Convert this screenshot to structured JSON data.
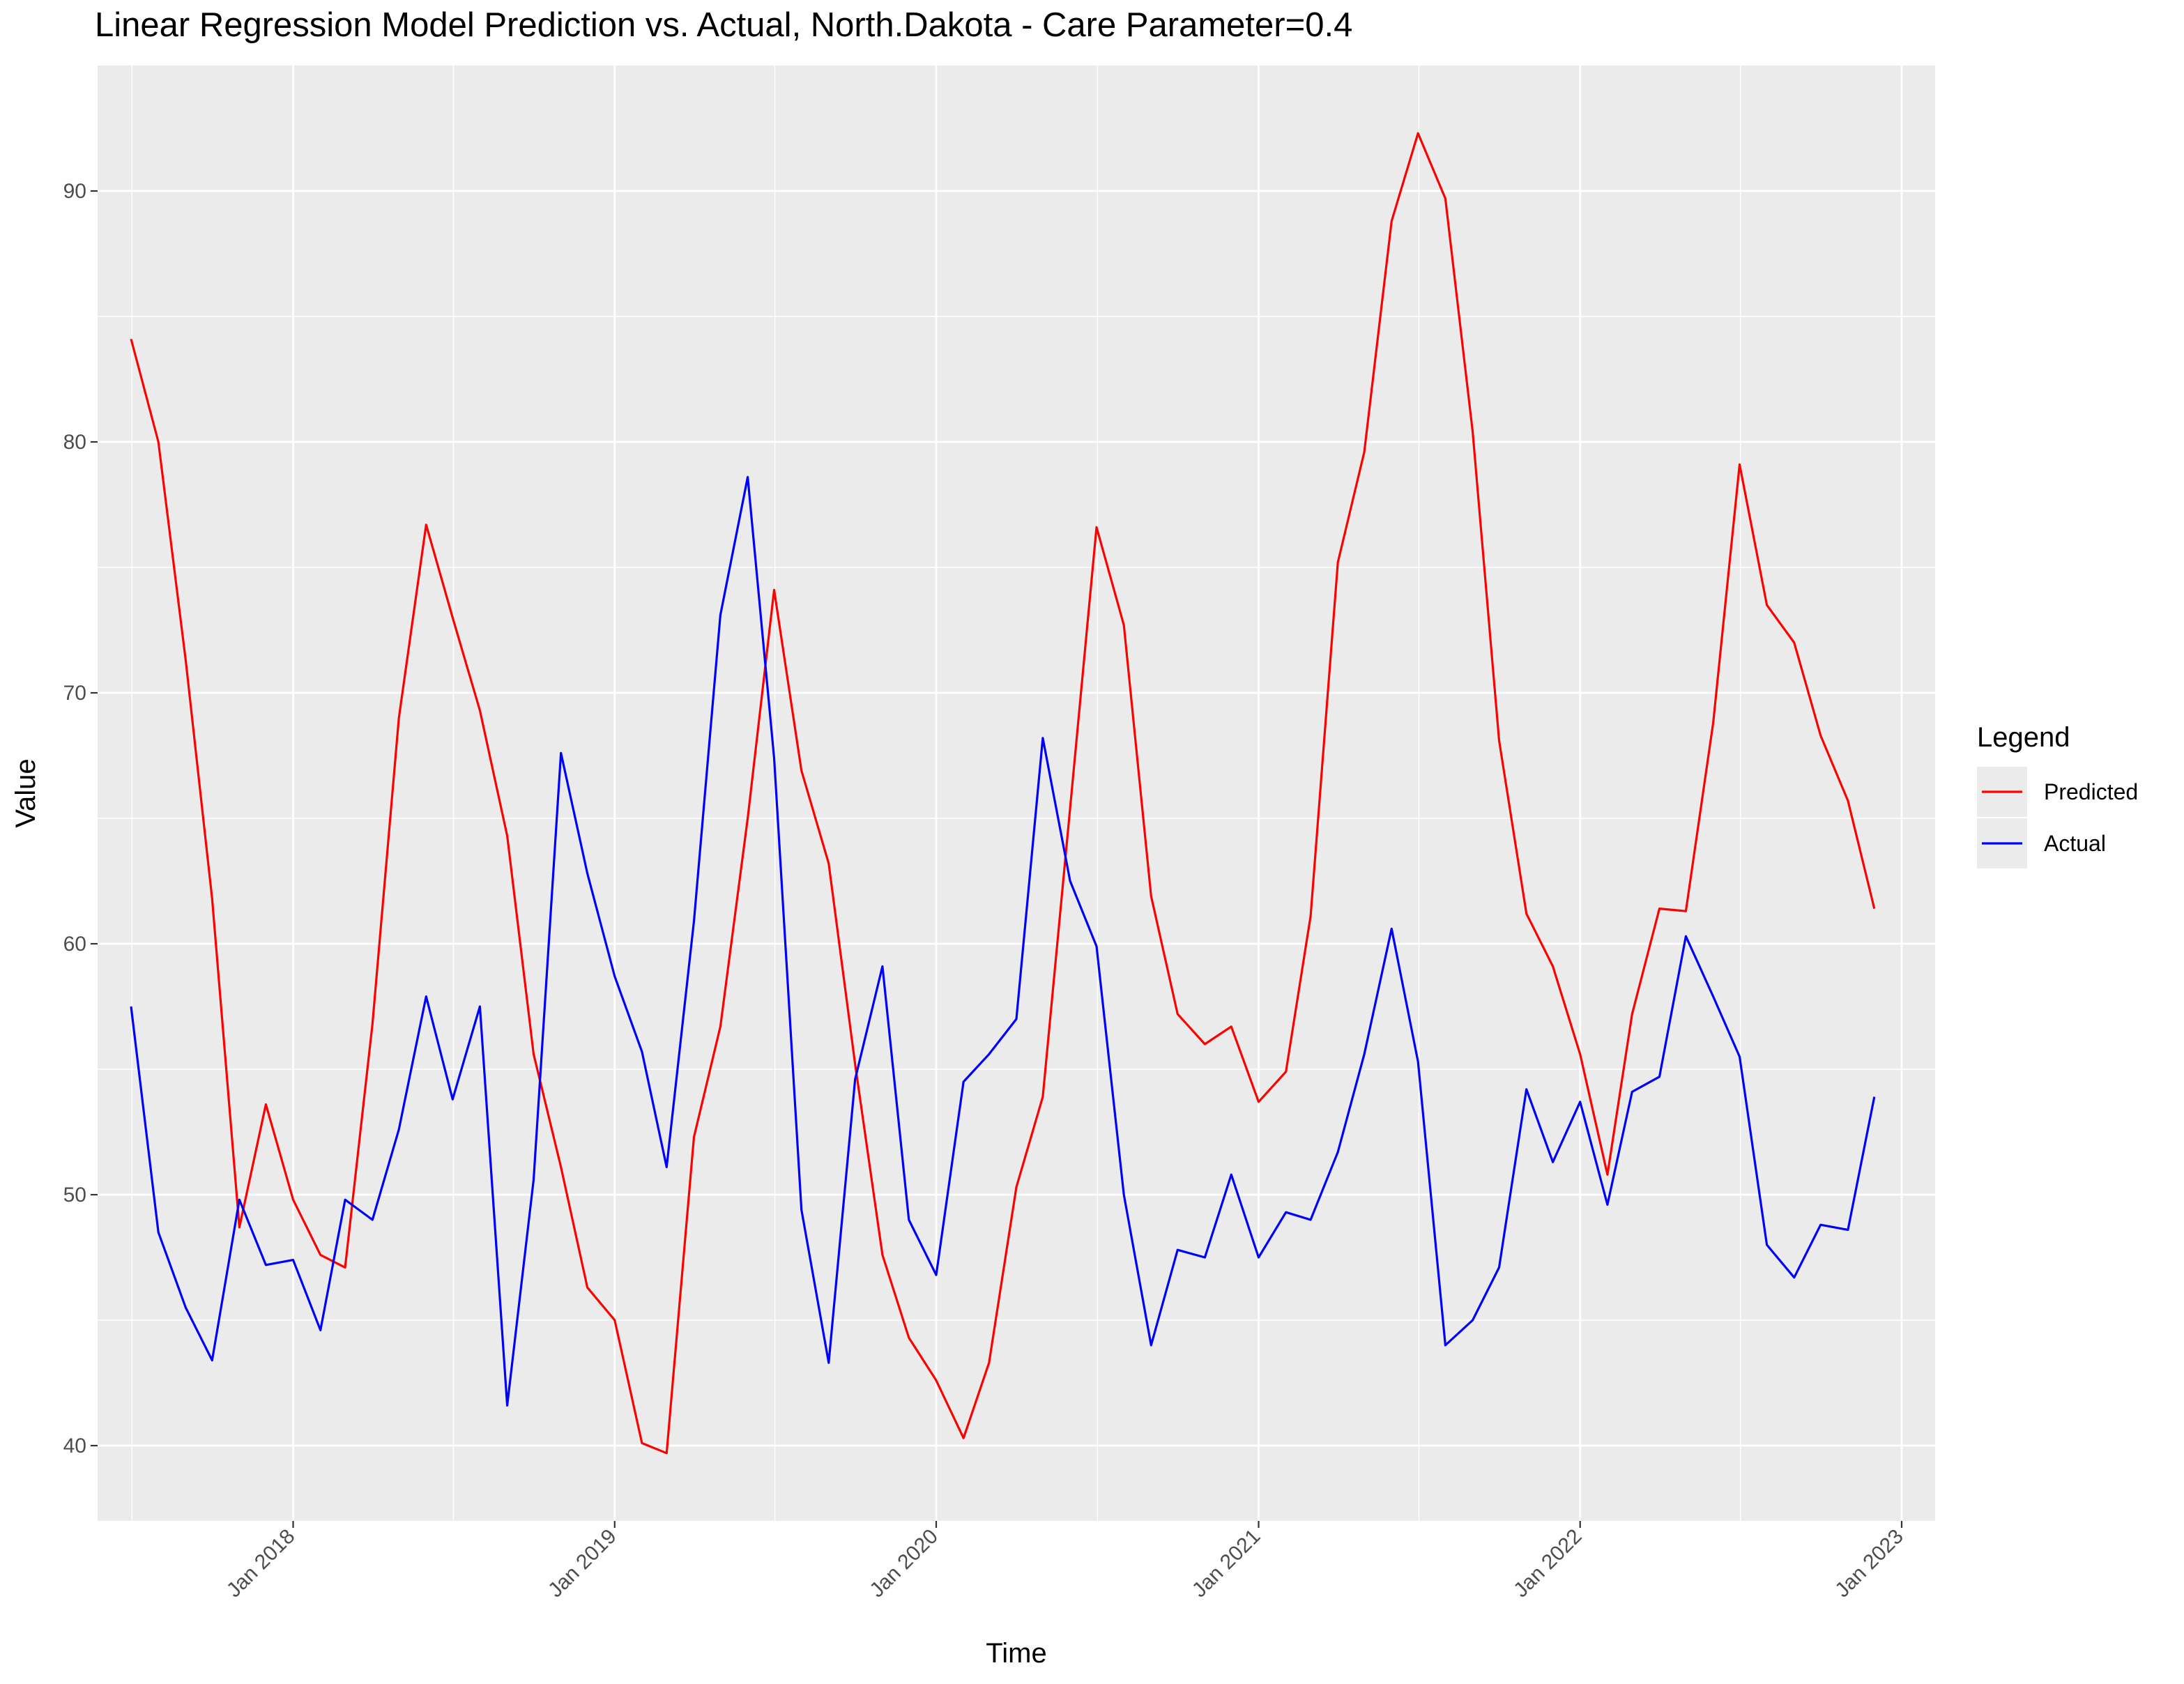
{
  "chart_data": {
    "type": "line",
    "title": "Linear Regression Model Prediction vs. Actual, North.Dakota - Care Parameter=0.4",
    "xlabel": "Time",
    "ylabel": "Value",
    "x": [
      "2017-07",
      "2017-08",
      "2017-09",
      "2017-10",
      "2017-11",
      "2017-12",
      "2018-01",
      "2018-02",
      "2018-03",
      "2018-04",
      "2018-05",
      "2018-06",
      "2018-07",
      "2018-08",
      "2018-09",
      "2018-10",
      "2018-11",
      "2018-12",
      "2019-01",
      "2019-02",
      "2019-03",
      "2019-04",
      "2019-05",
      "2019-06",
      "2019-07",
      "2019-08",
      "2019-09",
      "2019-10",
      "2019-11",
      "2019-12",
      "2020-01",
      "2020-02",
      "2020-03",
      "2020-04",
      "2020-05",
      "2020-06",
      "2020-07",
      "2020-08",
      "2020-09",
      "2020-10",
      "2020-11",
      "2020-12",
      "2021-01",
      "2021-02",
      "2021-03",
      "2021-04",
      "2021-05",
      "2021-06",
      "2021-07",
      "2021-08",
      "2021-09",
      "2021-10",
      "2021-11",
      "2021-12",
      "2022-01",
      "2022-02",
      "2022-03",
      "2022-04",
      "2022-05",
      "2022-06",
      "2022-07",
      "2022-08",
      "2022-09",
      "2022-10",
      "2022-11",
      "2022-12"
    ],
    "xticks": [
      "2018-01",
      "2019-01",
      "2020-01",
      "2021-01",
      "2022-01",
      "2023-01"
    ],
    "xtick_labels": [
      "Jan 2018",
      "Jan 2019",
      "Jan 2020",
      "Jan 2021",
      "Jan 2022",
      "Jan 2023"
    ],
    "xlim": [
      "2017-05-24",
      "2023-02-08"
    ],
    "yticks": [
      40,
      50,
      60,
      70,
      80,
      90
    ],
    "ylim": [
      37,
      95
    ],
    "grid": true,
    "legend": {
      "title": "Legend",
      "placement": "right"
    },
    "series": [
      {
        "name": "Predicted",
        "color": "#ff0000",
        "values": [
          84.1,
          80.0,
          71.3,
          61.8,
          48.7,
          53.6,
          49.8,
          47.6,
          47.1,
          56.8,
          69.0,
          76.7,
          73.0,
          69.3,
          64.3,
          55.6,
          51.1,
          46.3,
          45.0,
          40.1,
          39.7,
          52.3,
          56.7,
          65.0,
          74.1,
          66.9,
          63.2,
          55.2,
          47.6,
          44.3,
          42.6,
          40.3,
          43.3,
          50.3,
          53.9,
          65.4,
          76.6,
          72.7,
          61.9,
          57.2,
          56.0,
          56.7,
          53.7,
          54.9,
          61.1,
          75.2,
          79.6,
          88.8,
          92.3,
          89.7,
          80.4,
          68.1,
          61.2,
          59.1,
          55.6,
          50.8,
          57.2,
          61.4,
          61.3,
          68.8,
          79.1,
          73.5,
          72.0,
          68.3,
          65.7,
          61.4
        ]
      },
      {
        "name": "Actual",
        "color": "#0000ff",
        "values": [
          57.5,
          48.5,
          45.5,
          43.4,
          49.8,
          47.2,
          47.4,
          44.6,
          49.8,
          49.0,
          52.6,
          57.9,
          53.8,
          57.5,
          41.6,
          50.6,
          67.6,
          62.8,
          58.7,
          55.7,
          51.1,
          60.9,
          73.1,
          78.6,
          67.4,
          49.4,
          43.3,
          54.6,
          59.1,
          49.0,
          46.8,
          54.5,
          55.6,
          57.0,
          68.2,
          62.5,
          59.9,
          50.0,
          44.0,
          47.8,
          47.5,
          50.8,
          47.5,
          49.3,
          49.0,
          51.7,
          55.6,
          60.6,
          55.3,
          44.0,
          45.0,
          47.1,
          54.2,
          51.3,
          53.7,
          49.6,
          54.1,
          54.7,
          60.3,
          57.9,
          55.5,
          48.0,
          46.7,
          48.8,
          48.6,
          53.9
        ]
      }
    ]
  }
}
